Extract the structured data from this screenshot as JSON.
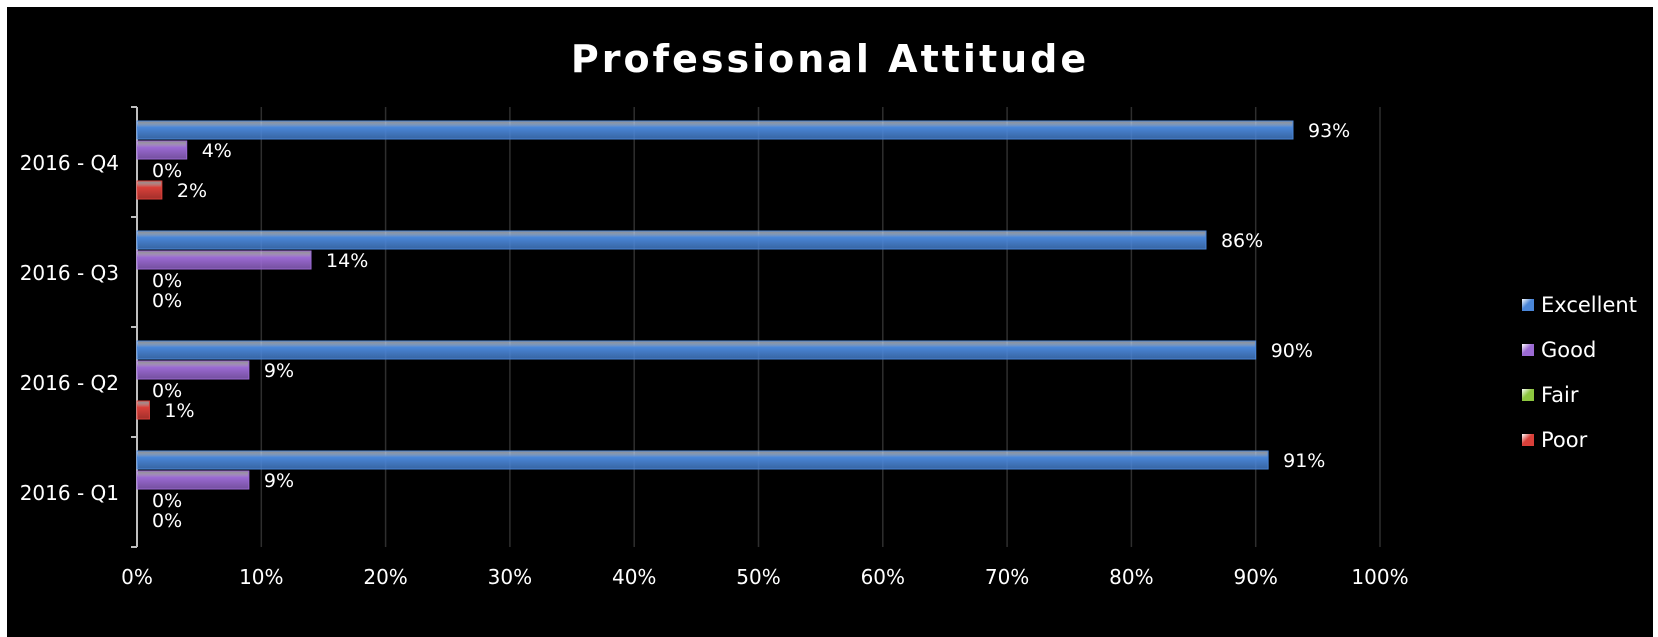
{
  "chart_data": {
    "type": "bar",
    "orientation": "horizontal",
    "title": "Professional Attitude",
    "categories": [
      "2016 - Q4",
      "2016 - Q3",
      "2016 - Q2",
      "2016 - Q1"
    ],
    "series": [
      {
        "name": "Excellent",
        "values": [
          93,
          86,
          90,
          91
        ],
        "color": "#4a86d8"
      },
      {
        "name": "Good",
        "values": [
          4,
          14,
          9,
          9
        ],
        "color": "#9b6ad3"
      },
      {
        "name": "Fair",
        "values": [
          0,
          0,
          0,
          0
        ],
        "color": "#8dc63f"
      },
      {
        "name": "Poor",
        "values": [
          2,
          0,
          1,
          0
        ],
        "color": "#d9403a"
      }
    ],
    "value_labels": [
      [
        "93%",
        "4%",
        "0%",
        "2%"
      ],
      [
        "86%",
        "14%",
        "0%",
        "0%"
      ],
      [
        "90%",
        "9%",
        "0%",
        "1%"
      ],
      [
        "91%",
        "9%",
        "0%",
        "0%"
      ]
    ],
    "x_ticks": [
      "0%",
      "10%",
      "20%",
      "30%",
      "40%",
      "50%",
      "60%",
      "70%",
      "80%",
      "90%",
      "100%"
    ],
    "xlim": [
      0,
      100
    ],
    "grid": true,
    "legend_position": "right",
    "background": "#000000",
    "text_color": "#ffffff"
  }
}
